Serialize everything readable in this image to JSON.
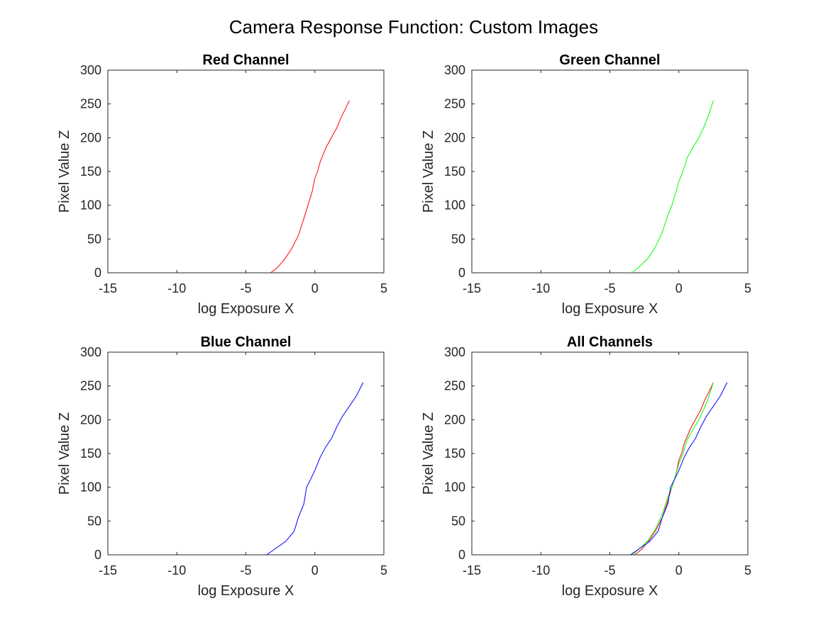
{
  "figure": {
    "title": "Camera Response Function: Custom Images"
  },
  "chart_data": [
    {
      "type": "line",
      "title": "Red Channel",
      "xlabel": "log Exposure X",
      "ylabel": "Pixel Value Z",
      "xlim": [
        -15,
        5
      ],
      "ylim": [
        0,
        300
      ],
      "xticks": [
        -15,
        -10,
        -5,
        0,
        5
      ],
      "yticks": [
        0,
        50,
        100,
        150,
        200,
        250,
        300
      ],
      "grid": false,
      "series": [
        {
          "color": "#ff0000",
          "x": [
            -3.2,
            -2.7,
            -2.2,
            -1.7,
            -1.2,
            -0.8,
            -0.5,
            -0.2,
            0.0,
            0.2,
            0.4,
            0.6,
            0.8,
            1.2,
            1.6,
            1.9,
            2.2,
            2.5
          ],
          "y": [
            0,
            8,
            20,
            35,
            55,
            80,
            100,
            120,
            140,
            150,
            165,
            175,
            185,
            200,
            215,
            230,
            242,
            255
          ]
        }
      ]
    },
    {
      "type": "line",
      "title": "Green Channel",
      "xlabel": "log Exposure X",
      "ylabel": "Pixel Value Z",
      "xlim": [
        -15,
        5
      ],
      "ylim": [
        0,
        300
      ],
      "xticks": [
        -15,
        -10,
        -5,
        0,
        5
      ],
      "yticks": [
        0,
        50,
        100,
        150,
        200,
        250,
        300
      ],
      "grid": false,
      "series": [
        {
          "color": "#00ff00",
          "x": [
            -3.4,
            -2.8,
            -2.2,
            -1.7,
            -1.2,
            -0.8,
            -0.5,
            -0.2,
            0.0,
            0.3,
            0.6,
            1.0,
            1.4,
            1.8,
            2.1,
            2.5
          ],
          "y": [
            0,
            10,
            22,
            38,
            60,
            85,
            100,
            120,
            135,
            150,
            170,
            185,
            198,
            215,
            230,
            255
          ]
        }
      ]
    },
    {
      "type": "line",
      "title": "Blue Channel",
      "xlabel": "log Exposure X",
      "ylabel": "Pixel Value Z",
      "xlim": [
        -15,
        5
      ],
      "ylim": [
        0,
        300
      ],
      "xticks": [
        -15,
        -10,
        -5,
        0,
        5
      ],
      "yticks": [
        0,
        50,
        100,
        150,
        200,
        250,
        300
      ],
      "grid": false,
      "series": [
        {
          "color": "#0000ff",
          "x": [
            -3.5,
            -2.8,
            -2.1,
            -1.5,
            -1.2,
            -0.8,
            -0.6,
            -0.3,
            0.0,
            0.4,
            0.8,
            1.2,
            1.6,
            2.0,
            2.5,
            3.0,
            3.5
          ],
          "y": [
            0,
            10,
            20,
            35,
            55,
            75,
            100,
            112,
            125,
            145,
            160,
            172,
            190,
            205,
            220,
            235,
            255
          ]
        }
      ]
    },
    {
      "type": "line",
      "title": "All Channels",
      "xlabel": "log Exposure X",
      "ylabel": "Pixel Value Z",
      "xlim": [
        -15,
        5
      ],
      "ylim": [
        0,
        300
      ],
      "xticks": [
        -15,
        -10,
        -5,
        0,
        5
      ],
      "yticks": [
        0,
        50,
        100,
        150,
        200,
        250,
        300
      ],
      "grid": false,
      "series": [
        {
          "color": "#ff0000",
          "x": [
            -3.2,
            -2.7,
            -2.2,
            -1.7,
            -1.2,
            -0.8,
            -0.5,
            -0.2,
            0.0,
            0.2,
            0.4,
            0.6,
            0.8,
            1.2,
            1.6,
            1.9,
            2.2,
            2.5
          ],
          "y": [
            0,
            8,
            20,
            35,
            55,
            80,
            100,
            120,
            140,
            150,
            165,
            175,
            185,
            200,
            215,
            230,
            242,
            255
          ]
        },
        {
          "color": "#00ff00",
          "x": [
            -3.4,
            -2.8,
            -2.2,
            -1.7,
            -1.2,
            -0.8,
            -0.5,
            -0.2,
            0.0,
            0.3,
            0.6,
            1.0,
            1.4,
            1.8,
            2.1,
            2.5
          ],
          "y": [
            0,
            10,
            22,
            38,
            60,
            85,
            100,
            120,
            135,
            150,
            170,
            185,
            198,
            215,
            230,
            255
          ]
        },
        {
          "color": "#0000ff",
          "x": [
            -3.5,
            -2.8,
            -2.1,
            -1.5,
            -1.2,
            -0.8,
            -0.6,
            -0.3,
            0.0,
            0.4,
            0.8,
            1.2,
            1.6,
            2.0,
            2.5,
            3.0,
            3.5
          ],
          "y": [
            0,
            10,
            20,
            35,
            55,
            75,
            100,
            112,
            125,
            145,
            160,
            172,
            190,
            205,
            220,
            235,
            255
          ]
        }
      ]
    }
  ]
}
